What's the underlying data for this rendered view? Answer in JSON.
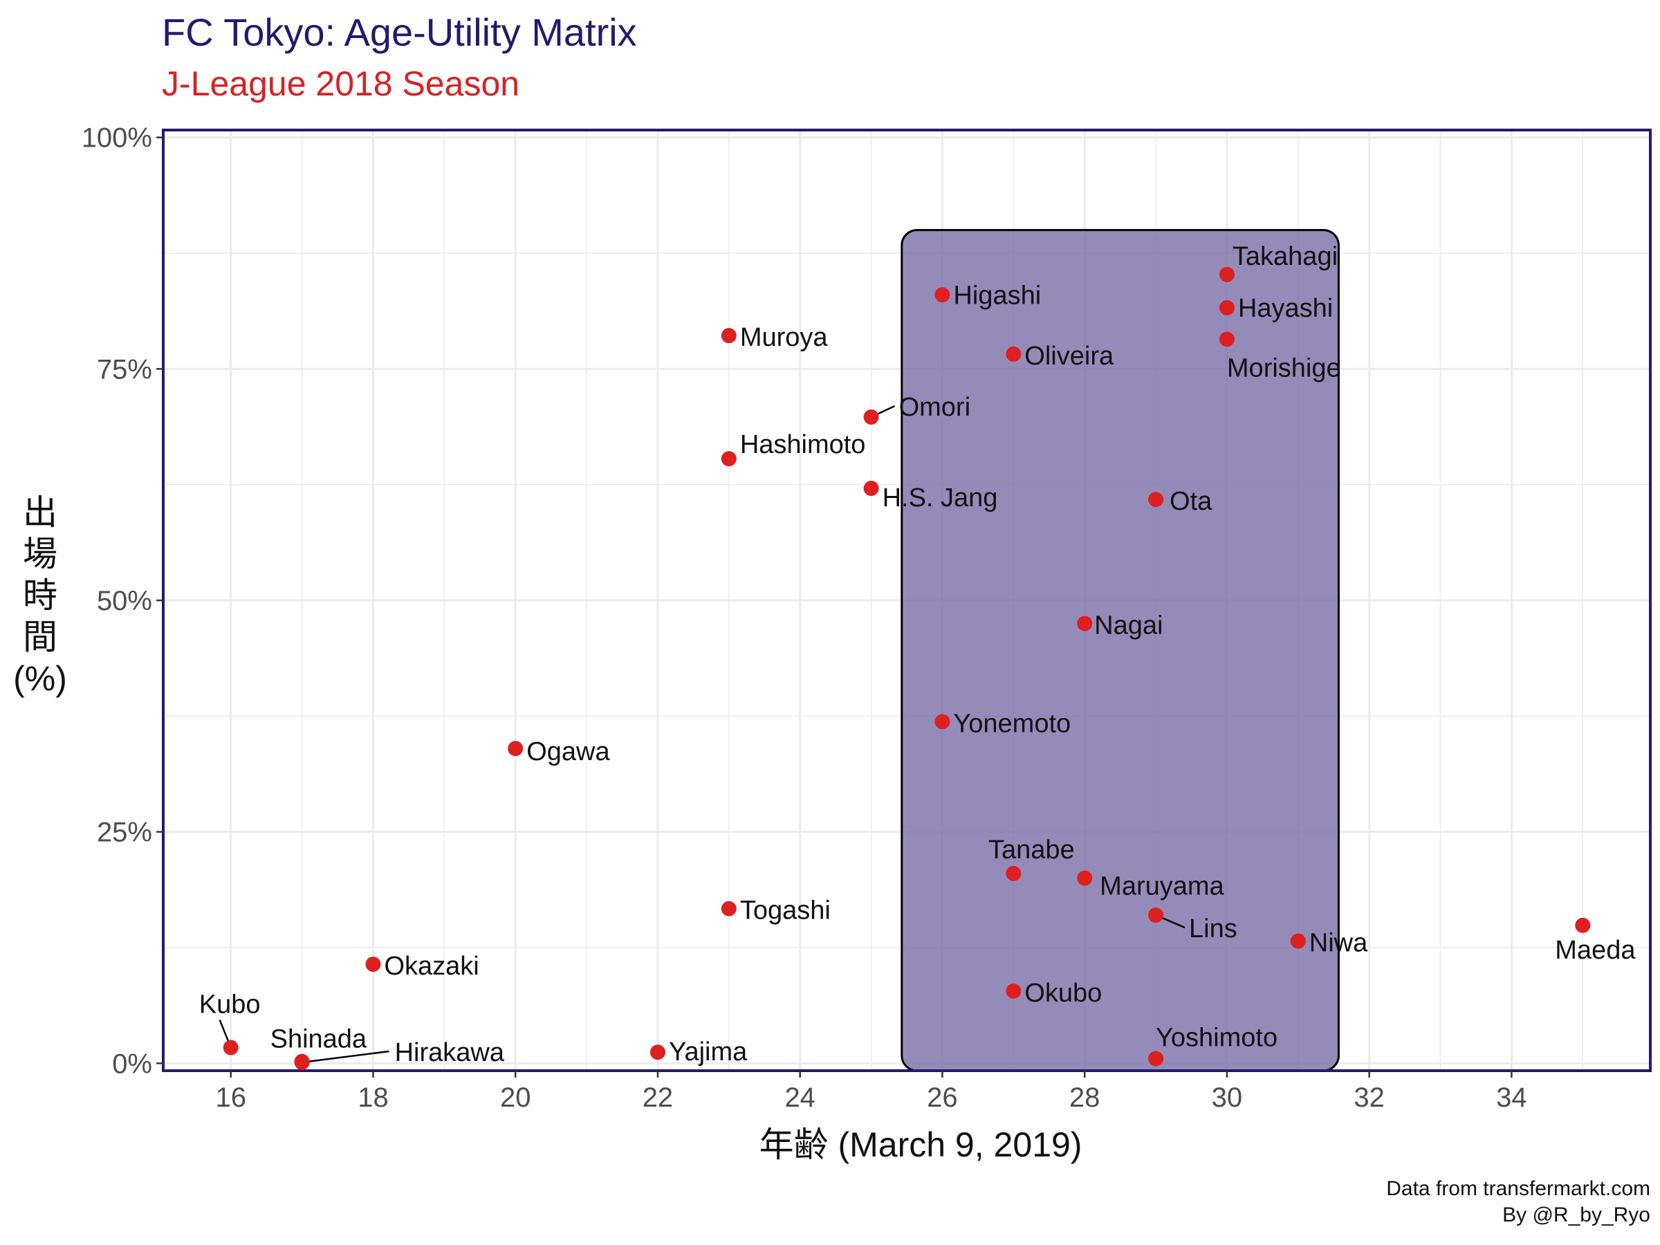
{
  "title": "FC Tokyo: Age-Utility Matrix",
  "subtitle": "J-League 2018 Season",
  "caption": [
    "Data from transfermarkt.com",
    "By @R_by_Ryo"
  ],
  "colors": {
    "title": "#231a6e",
    "subtitle": "#d62222",
    "point": "#dd2020",
    "highlight_fill": "#7a6ea8",
    "panel_border": "#231a6e",
    "grid": "#ebebeb"
  },
  "chart_data": {
    "type": "scatter",
    "title": "FC Tokyo: Age-Utility Matrix",
    "subtitle": "J-League 2018 Season",
    "xlabel": "年齢 (March 9, 2019)",
    "ylabel_lines": [
      "出",
      "場",
      "時",
      "間",
      "(%)"
    ],
    "xlim": [
      15.05,
      35.95
    ],
    "ylim": [
      -0.008,
      1.008
    ],
    "x_ticks": [
      16,
      18,
      20,
      22,
      24,
      26,
      28,
      30,
      32,
      34
    ],
    "y_ticks": [
      0,
      0.25,
      0.5,
      0.75,
      1.0
    ],
    "y_tick_labels": [
      "0%",
      "25%",
      "50%",
      "75%",
      "100%"
    ],
    "grid": true,
    "highlight_region": {
      "x": [
        25.43,
        31.57
      ],
      "y": [
        -0.008,
        0.9
      ]
    },
    "points": [
      {
        "name": "Takahagi",
        "age": 30,
        "minutes_pct": 0.852
      },
      {
        "name": "Higashi",
        "age": 26,
        "minutes_pct": 0.83
      },
      {
        "name": "Hayashi",
        "age": 30,
        "minutes_pct": 0.816
      },
      {
        "name": "Muroya",
        "age": 23,
        "minutes_pct": 0.786
      },
      {
        "name": "Morishige",
        "age": 30,
        "minutes_pct": 0.782
      },
      {
        "name": "Oliveira",
        "age": 27,
        "minutes_pct": 0.766
      },
      {
        "name": "Omori",
        "age": 25,
        "minutes_pct": 0.698
      },
      {
        "name": "Hashimoto",
        "age": 23,
        "minutes_pct": 0.653
      },
      {
        "name": "H.S. Jang",
        "age": 25,
        "minutes_pct": 0.621
      },
      {
        "name": "Ota",
        "age": 29,
        "minutes_pct": 0.609
      },
      {
        "name": "Nagai",
        "age": 28,
        "minutes_pct": 0.475
      },
      {
        "name": "Yonemoto",
        "age": 26,
        "minutes_pct": 0.369
      },
      {
        "name": "Ogawa",
        "age": 20,
        "minutes_pct": 0.34
      },
      {
        "name": "Tanabe",
        "age": 27,
        "minutes_pct": 0.205
      },
      {
        "name": "Maruyama",
        "age": 28,
        "minutes_pct": 0.2
      },
      {
        "name": "Togashi",
        "age": 23,
        "minutes_pct": 0.167
      },
      {
        "name": "Lins",
        "age": 29,
        "minutes_pct": 0.16
      },
      {
        "name": "Maeda",
        "age": 35,
        "minutes_pct": 0.149
      },
      {
        "name": "Niwa",
        "age": 31,
        "minutes_pct": 0.132
      },
      {
        "name": "Okazaki",
        "age": 18,
        "minutes_pct": 0.107
      },
      {
        "name": "Okubo",
        "age": 27,
        "minutes_pct": 0.078
      },
      {
        "name": "Kubo",
        "age": 16,
        "minutes_pct": 0.017
      },
      {
        "name": "Yajima",
        "age": 22,
        "minutes_pct": 0.012
      },
      {
        "name": "Yoshimoto",
        "age": 29,
        "minutes_pct": 0.005
      },
      {
        "name": "Shinada",
        "age": 17,
        "minutes_pct": 0.002
      },
      {
        "name": "Hirakawa",
        "age": 17,
        "minutes_pct": 0.001
      }
    ]
  }
}
